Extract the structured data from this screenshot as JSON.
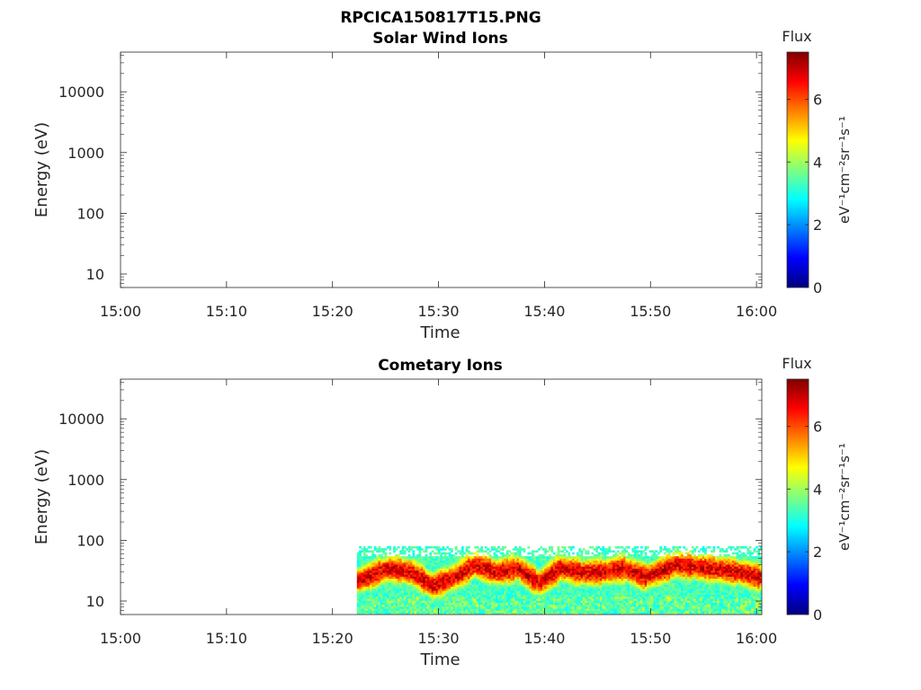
{
  "figure": {
    "title": "RPCICA150817T15.PNG"
  },
  "colormap": {
    "name": "jet",
    "stops": [
      "#00007f",
      "#0000ff",
      "#007fff",
      "#00ffff",
      "#7fff7f",
      "#ffff00",
      "#ff7f00",
      "#ff0000",
      "#7f0000"
    ]
  },
  "chart_data": [
    {
      "type": "heatmap",
      "title": "Solar Wind Ions",
      "xlabel": "Time",
      "ylabel": "Energy (eV)",
      "x_ticks": [
        "15:00",
        "15:10",
        "15:20",
        "15:30",
        "15:40",
        "15:50",
        "16:00"
      ],
      "x_range_minutes": [
        0,
        60.5
      ],
      "y_scale": "log",
      "y_range": [
        6,
        45000
      ],
      "y_ticks": [
        10,
        100,
        1000,
        10000
      ],
      "y_tick_labels": [
        "10",
        "100",
        "1000",
        "10000"
      ],
      "colorbar": {
        "label_title": "Flux",
        "label_unit": "eV⁻¹cm⁻²sr⁻¹s⁻¹",
        "range": [
          0,
          7.5
        ],
        "ticks": [
          0,
          2,
          4,
          6
        ]
      },
      "data_present": false
    },
    {
      "type": "heatmap",
      "title": "Cometary Ions",
      "xlabel": "Time",
      "ylabel": "Energy (eV)",
      "x_ticks": [
        "15:00",
        "15:10",
        "15:20",
        "15:30",
        "15:40",
        "15:50",
        "16:00"
      ],
      "x_range_minutes": [
        0,
        60.5
      ],
      "y_scale": "log",
      "y_range": [
        6,
        45000
      ],
      "y_ticks": [
        10,
        100,
        1000,
        10000
      ],
      "y_tick_labels": [
        "10",
        "100",
        "1000",
        "10000"
      ],
      "colorbar": {
        "label_title": "Flux",
        "label_unit": "eV⁻¹cm⁻²sr⁻¹s⁻¹",
        "range": [
          0,
          7.5
        ],
        "ticks": [
          0,
          2,
          4,
          6
        ]
      },
      "data_present": true,
      "data_time_range_minutes": [
        22.3,
        60.5
      ],
      "data_energy_range_eV": [
        6,
        80
      ],
      "peak_energy_eV": 25,
      "peak_flux": 7.2,
      "approx_peak_energy_series": {
        "time_minutes": [
          22.5,
          25.3,
          27.5,
          29.5,
          31.5,
          33.5,
          35.5,
          37.5,
          39.5,
          41.5,
          43.5,
          45.5,
          47.5,
          49.5,
          52.5,
          55.5,
          58.5,
          60.3
        ],
        "energy_eV": [
          22,
          35,
          30,
          18,
          25,
          40,
          30,
          35,
          20,
          35,
          30,
          30,
          35,
          25,
          40,
          35,
          30,
          25
        ]
      }
    }
  ]
}
